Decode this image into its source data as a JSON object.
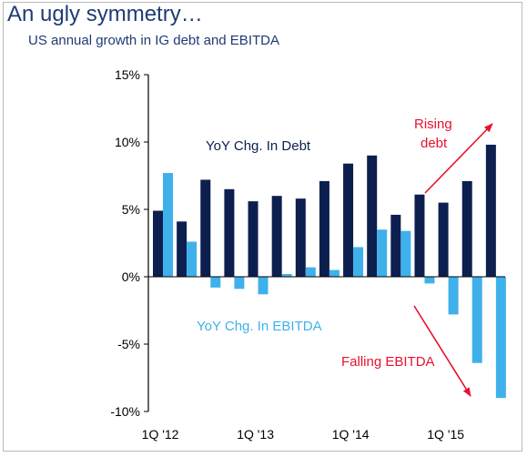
{
  "header": {
    "title": "An ugly symmetry…",
    "subtitle": "US annual growth in IG debt and EBITDA"
  },
  "chart_data": {
    "type": "bar",
    "x_tick_labels": [
      "1Q '12",
      "1Q '13",
      "1Q '14",
      "1Q '15"
    ],
    "x_tick_category_index": [
      0,
      4,
      8,
      12
    ],
    "categories": [
      "1Q '12",
      "2Q '12",
      "3Q '12",
      "4Q '12",
      "1Q '13",
      "2Q '13",
      "3Q '13",
      "4Q '13",
      "1Q '14",
      "2Q '14",
      "3Q '14",
      "4Q '14",
      "1Q '15",
      "2Q '15",
      "3Q '15"
    ],
    "series": [
      {
        "name": "YoY Chg. In Debt",
        "color": "#0d1f4f",
        "values": [
          4.9,
          4.1,
          7.2,
          6.5,
          5.6,
          6.0,
          5.8,
          7.1,
          8.4,
          9.0,
          4.6,
          6.1,
          5.5,
          7.1,
          9.8
        ]
      },
      {
        "name": "YoY Chg. In EBITDA",
        "color": "#3fb1ea",
        "values": [
          7.7,
          2.6,
          -0.8,
          -0.9,
          -1.3,
          0.2,
          0.7,
          0.5,
          2.2,
          3.5,
          3.4,
          -0.5,
          -2.8,
          -6.4,
          -9.0
        ]
      }
    ],
    "ylim": [
      -10,
      15
    ],
    "y_ticks": [
      -10,
      -5,
      0,
      5,
      10,
      15
    ],
    "y_tick_labels": [
      "-10%",
      "-5%",
      "0%",
      "5%",
      "10%",
      "15%"
    ],
    "series_labels": {
      "debt": "YoY Chg. In Debt",
      "ebitda": "YoY Chg. In EBITDA"
    },
    "annotations": {
      "rising": [
        "Rising",
        "debt"
      ],
      "falling": "Falling EBITDA",
      "color": "#e8112d"
    }
  }
}
